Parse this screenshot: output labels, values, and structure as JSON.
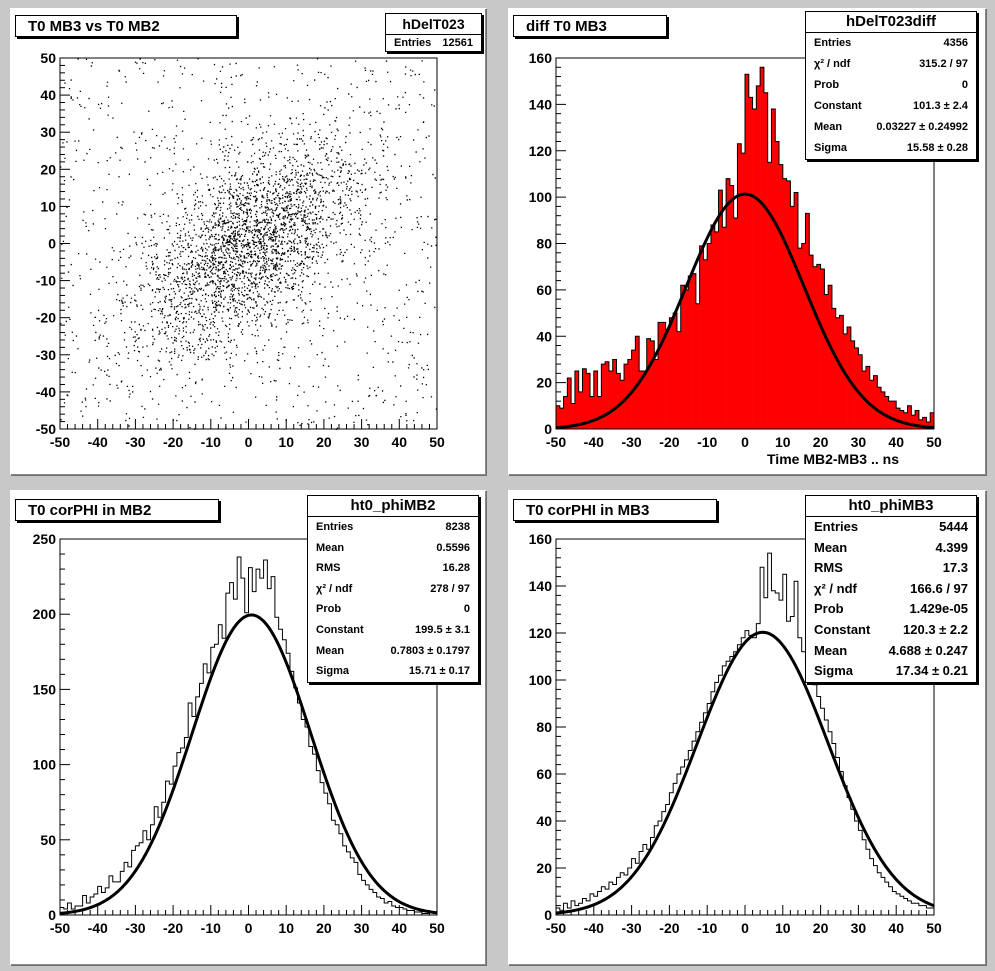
{
  "pads": [
    {
      "id": "p1",
      "title": "T0 MB3 vs T0 MB2",
      "stats_name": "hDelT023",
      "stats": [
        {
          "label": "Entries",
          "value": "12561"
        }
      ]
    },
    {
      "id": "p2",
      "title": "diff T0 MB3",
      "stats_name": "hDelT023diff",
      "stats": [
        {
          "label": "Entries",
          "value": "4356"
        },
        {
          "label": "χ² / ndf",
          "value": "315.2 / 97"
        },
        {
          "label": "Prob",
          "value": "0"
        },
        {
          "label": "Constant",
          "value": "101.3 ± 2.4"
        },
        {
          "label": "Mean",
          "value": "0.03227 ± 0.24992"
        },
        {
          "label": "Sigma",
          "value": "15.58 ± 0.28"
        }
      ],
      "xtitle": "Time MB2-MB3  ..  ns"
    },
    {
      "id": "p3",
      "title": "T0 corPHI in MB2",
      "stats_name": "ht0_phiMB2",
      "stats": [
        {
          "label": "Entries",
          "value": "8238"
        },
        {
          "label": "Mean",
          "value": "0.5596"
        },
        {
          "label": "RMS",
          "value": "16.28"
        },
        {
          "label": "χ² / ndf",
          "value": "278 / 97"
        },
        {
          "label": "Prob",
          "value": "0"
        },
        {
          "label": "Constant",
          "value": "199.5 ± 3.1"
        },
        {
          "label": "Mean",
          "value": "0.7803 ± 0.1797"
        },
        {
          "label": "Sigma",
          "value": "15.71 ± 0.17"
        }
      ]
    },
    {
      "id": "p4",
      "title": "T0 corPHI in MB3",
      "stats_name": "ht0_phiMB3",
      "stats": [
        {
          "label": "Entries",
          "value": "5444"
        },
        {
          "label": "Mean",
          "value": "4.399"
        },
        {
          "label": "RMS",
          "value": "17.3"
        },
        {
          "label": "χ² / ndf",
          "value": "166.6 / 97"
        },
        {
          "label": "Prob",
          "value": "1.429e-05"
        },
        {
          "label": "Constant",
          "value": "120.3 ± 2.2"
        },
        {
          "label": "Mean",
          "value": "4.688 ± 0.247"
        },
        {
          "label": "Sigma",
          "value": "17.34 ± 0.21"
        }
      ]
    }
  ],
  "chart_data": [
    {
      "type": "scatter",
      "title": "T0 MB3 vs T0 MB2",
      "xlim": [
        -50,
        50
      ],
      "ylim": [
        -50,
        50
      ],
      "xticks": [
        -50,
        -40,
        -30,
        -20,
        -10,
        0,
        10,
        20,
        30,
        40,
        50
      ],
      "yticks": [
        -50,
        -40,
        -30,
        -20,
        -10,
        0,
        10,
        20,
        30,
        40,
        50
      ],
      "entries": 12561,
      "description_of_points": "dense cloud of points centered near (0,0) with positive correlation",
      "color": "#000000"
    },
    {
      "type": "bar",
      "title": "diff T0 MB3",
      "xlabel": "Time MB2-MB3  ..  ns",
      "xlim": [
        -50,
        50
      ],
      "ylim": [
        0,
        160
      ],
      "xticks": [
        -50,
        -40,
        -30,
        -20,
        -10,
        0,
        10,
        20,
        30,
        40,
        50
      ],
      "yticks": [
        0,
        20,
        40,
        60,
        80,
        100,
        120,
        140,
        160
      ],
      "fill_color": "#ff0000",
      "fit": {
        "constant": 101.3,
        "mean": 0.03227,
        "sigma": 15.58
      },
      "values": [
        10,
        9,
        14,
        22,
        11,
        25,
        16,
        26,
        24,
        14,
        25,
        14,
        28,
        29,
        25,
        30,
        24,
        21,
        28,
        30,
        34,
        40,
        25,
        25,
        39,
        38,
        30,
        46,
        46,
        43,
        48,
        50,
        42,
        62,
        60,
        66,
        67,
        54,
        79,
        73,
        80,
        88,
        85,
        103,
        87,
        108,
        105,
        91,
        123,
        119,
        153,
        143,
        138,
        148,
        156,
        145,
        115,
        138,
        124,
        114,
        108,
        107,
        96,
        102,
        78,
        80,
        93,
        75,
        70,
        71,
        69,
        58,
        62,
        52,
        48,
        49,
        41,
        44,
        38,
        35,
        32,
        25,
        27,
        21,
        23,
        18,
        16,
        14,
        12,
        12,
        9,
        8,
        7,
        10,
        6,
        8,
        4,
        5,
        3,
        7
      ]
    },
    {
      "type": "bar",
      "title": "T0 corPHI in MB2",
      "xlim": [
        -50,
        50
      ],
      "ylim": [
        0,
        250
      ],
      "xticks": [
        -50,
        -40,
        -30,
        -20,
        -10,
        0,
        10,
        20,
        30,
        40,
        50
      ],
      "yticks": [
        0,
        50,
        100,
        150,
        200,
        250
      ],
      "fill_color": "none",
      "fit": {
        "constant": 199.5,
        "mean": 0.7803,
        "sigma": 15.71
      },
      "values": [
        5,
        4,
        8,
        4,
        6,
        6,
        13,
        8,
        12,
        14,
        19,
        15,
        18,
        26,
        22,
        22,
        29,
        35,
        32,
        43,
        46,
        48,
        56,
        50,
        60,
        72,
        65,
        75,
        89,
        87,
        99,
        108,
        111,
        118,
        141,
        132,
        145,
        154,
        167,
        161,
        178,
        180,
        193,
        184,
        214,
        221,
        210,
        238,
        224,
        201,
        231,
        215,
        230,
        224,
        236,
        217,
        225,
        198,
        190,
        183,
        174,
        162,
        151,
        141,
        130,
        125,
        112,
        107,
        96,
        88,
        81,
        74,
        63,
        60,
        54,
        46,
        42,
        38,
        35,
        27,
        23,
        20,
        17,
        15,
        12,
        11,
        8,
        9,
        6,
        5,
        5,
        4,
        3,
        3,
        2,
        2,
        1,
        1,
        2,
        1
      ]
    },
    {
      "type": "bar",
      "title": "T0 corPHI in MB3",
      "xlim": [
        -50,
        50
      ],
      "ylim": [
        0,
        160
      ],
      "xticks": [
        -50,
        -40,
        -30,
        -20,
        -10,
        0,
        10,
        20,
        30,
        40,
        50
      ],
      "yticks": [
        0,
        20,
        40,
        60,
        80,
        100,
        120,
        140,
        160
      ],
      "fill_color": "none",
      "fit": {
        "constant": 120.3,
        "mean": 4.688,
        "sigma": 17.34
      },
      "values": [
        3,
        2,
        5,
        3,
        6,
        4,
        5,
        7,
        6,
        9,
        8,
        10,
        12,
        11,
        14,
        13,
        16,
        18,
        17,
        20,
        24,
        22,
        27,
        30,
        28,
        33,
        38,
        40,
        44,
        47,
        52,
        56,
        60,
        63,
        66,
        70,
        74,
        78,
        82,
        86,
        90,
        95,
        99,
        102,
        106,
        108,
        110,
        112,
        115,
        118,
        121,
        119,
        118,
        124,
        148,
        135,
        154,
        138,
        137,
        134,
        145,
        125,
        127,
        142,
        118,
        112,
        108,
        103,
        98,
        93,
        88,
        83,
        78,
        73,
        67,
        61,
        55,
        50,
        45,
        40,
        36,
        32,
        28,
        24,
        21,
        18,
        16,
        14,
        12,
        10,
        9,
        8,
        7,
        6,
        5,
        5,
        4,
        4,
        3,
        3
      ]
    }
  ]
}
